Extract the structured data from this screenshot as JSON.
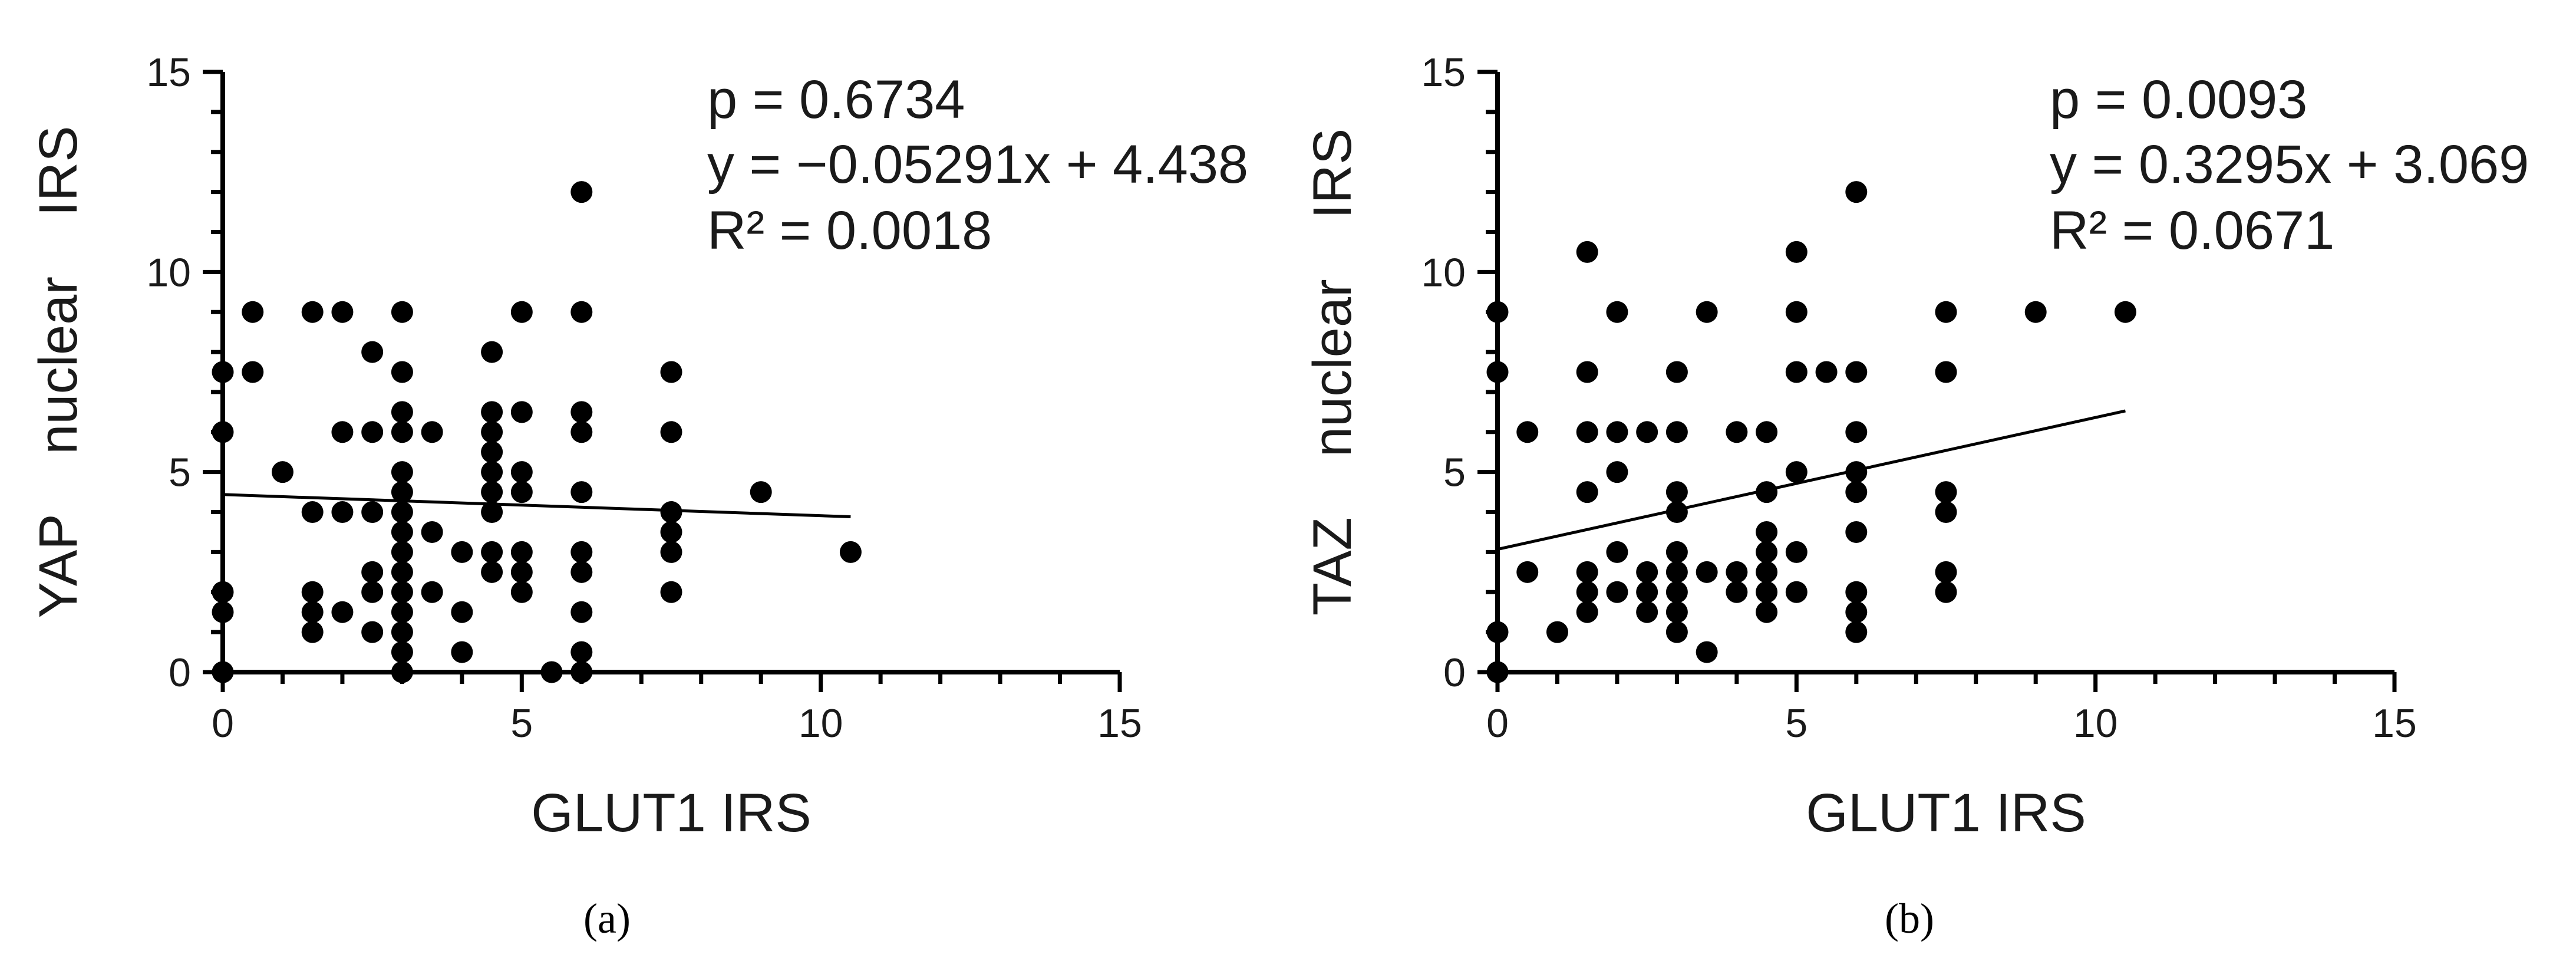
{
  "chart_data": [
    {
      "type": "scatter",
      "panel_label": "(a)",
      "xlabel": "GLUT1 IRS",
      "ylabel": "YAP    nuclear    IRS",
      "xlim": [
        0,
        15
      ],
      "ylim": [
        0,
        15
      ],
      "xticks": [
        0,
        5,
        10,
        15
      ],
      "yticks": [
        0,
        5,
        10,
        15
      ],
      "grid": false,
      "annotations": [
        "p = 0.6734",
        "y = −0.05291x + 4.438",
        "R² = 0.0018"
      ],
      "regression": {
        "slope": -0.05291,
        "intercept": 4.438,
        "x_range": [
          0,
          10.5
        ]
      },
      "points": [
        [
          0,
          7.5
        ],
        [
          0,
          6
        ],
        [
          0,
          2
        ],
        [
          0,
          1.5
        ],
        [
          0,
          0
        ],
        [
          0.5,
          9
        ],
        [
          0.5,
          7.5
        ],
        [
          1,
          5
        ],
        [
          1.5,
          9
        ],
        [
          1.5,
          4
        ],
        [
          1.5,
          2
        ],
        [
          1.5,
          1.5
        ],
        [
          1.5,
          1
        ],
        [
          2,
          9
        ],
        [
          2,
          6
        ],
        [
          2,
          4
        ],
        [
          2,
          1.5
        ],
        [
          2.5,
          8
        ],
        [
          2.5,
          6
        ],
        [
          2.5,
          4
        ],
        [
          2.5,
          2.5
        ],
        [
          2.5,
          2
        ],
        [
          2.5,
          1
        ],
        [
          3,
          9
        ],
        [
          3,
          7.5
        ],
        [
          3,
          6.5
        ],
        [
          3,
          6
        ],
        [
          3,
          5
        ],
        [
          3,
          4.5
        ],
        [
          3,
          4
        ],
        [
          3,
          3.5
        ],
        [
          3,
          3
        ],
        [
          3,
          2.5
        ],
        [
          3,
          2
        ],
        [
          3,
          1.5
        ],
        [
          3,
          1
        ],
        [
          3,
          0.5
        ],
        [
          3,
          0
        ],
        [
          3.5,
          6
        ],
        [
          3.5,
          3.5
        ],
        [
          3.5,
          2
        ],
        [
          4,
          3
        ],
        [
          4,
          1.5
        ],
        [
          4,
          0.5
        ],
        [
          4.5,
          8
        ],
        [
          4.5,
          6.5
        ],
        [
          4.5,
          6
        ],
        [
          4.5,
          5.5
        ],
        [
          4.5,
          5
        ],
        [
          4.5,
          4.5
        ],
        [
          4.5,
          4
        ],
        [
          4.5,
          3
        ],
        [
          4.5,
          2.5
        ],
        [
          5,
          9
        ],
        [
          5,
          6.5
        ],
        [
          5,
          5
        ],
        [
          5,
          4.5
        ],
        [
          5,
          3
        ],
        [
          5,
          2.5
        ],
        [
          5,
          2
        ],
        [
          5.5,
          0
        ],
        [
          6,
          12
        ],
        [
          6,
          9
        ],
        [
          6,
          6.5
        ],
        [
          6,
          6
        ],
        [
          6,
          4.5
        ],
        [
          6,
          3
        ],
        [
          6,
          2.5
        ],
        [
          6,
          1.5
        ],
        [
          6,
          0.5
        ],
        [
          6,
          0
        ],
        [
          7.5,
          7.5
        ],
        [
          7.5,
          6
        ],
        [
          7.5,
          4
        ],
        [
          7.5,
          3.5
        ],
        [
          7.5,
          3
        ],
        [
          7.5,
          2
        ],
        [
          9,
          4.5
        ],
        [
          10.5,
          3
        ]
      ]
    },
    {
      "type": "scatter",
      "panel_label": "(b)",
      "xlabel": "GLUT1 IRS",
      "ylabel": "TAZ    nuclear    IRS",
      "xlim": [
        0,
        15
      ],
      "ylim": [
        0,
        15
      ],
      "xticks": [
        0,
        5,
        10,
        15
      ],
      "yticks": [
        0,
        5,
        10,
        15
      ],
      "grid": false,
      "annotations": [
        "p = 0.0093",
        "y = 0.3295x + 3.069",
        "R² = 0.0671"
      ],
      "regression": {
        "slope": 0.3295,
        "intercept": 3.069,
        "x_range": [
          0,
          10.5
        ]
      },
      "points": [
        [
          0,
          9
        ],
        [
          0,
          7.5
        ],
        [
          0,
          1
        ],
        [
          0,
          0
        ],
        [
          0.5,
          6
        ],
        [
          0.5,
          2.5
        ],
        [
          1,
          1
        ],
        [
          1.5,
          10.5
        ],
        [
          1.5,
          7.5
        ],
        [
          1.5,
          6
        ],
        [
          1.5,
          4.5
        ],
        [
          1.5,
          2.5
        ],
        [
          1.5,
          2
        ],
        [
          1.5,
          1.5
        ],
        [
          2,
          9
        ],
        [
          2,
          6
        ],
        [
          2,
          5
        ],
        [
          2,
          3
        ],
        [
          2,
          2
        ],
        [
          2.5,
          6
        ],
        [
          2.5,
          2.5
        ],
        [
          2.5,
          2
        ],
        [
          2.5,
          1.5
        ],
        [
          3,
          7.5
        ],
        [
          3,
          6
        ],
        [
          3,
          4.5
        ],
        [
          3,
          4
        ],
        [
          3,
          3
        ],
        [
          3,
          2.5
        ],
        [
          3,
          2
        ],
        [
          3,
          1.5
        ],
        [
          3,
          1
        ],
        [
          3.5,
          9
        ],
        [
          3.5,
          2.5
        ],
        [
          3.5,
          0.5
        ],
        [
          4,
          6
        ],
        [
          4,
          2.5
        ],
        [
          4,
          2
        ],
        [
          4.5,
          6
        ],
        [
          4.5,
          4.5
        ],
        [
          4.5,
          3.5
        ],
        [
          4.5,
          3
        ],
        [
          4.5,
          2.5
        ],
        [
          4.5,
          2
        ],
        [
          4.5,
          1.5
        ],
        [
          5,
          10.5
        ],
        [
          5,
          9
        ],
        [
          5,
          7.5
        ],
        [
          5,
          5
        ],
        [
          5,
          3
        ],
        [
          5,
          2
        ],
        [
          5.5,
          7.5
        ],
        [
          6,
          12
        ],
        [
          6,
          7.5
        ],
        [
          6,
          6
        ],
        [
          6,
          5
        ],
        [
          6,
          4.5
        ],
        [
          6,
          3.5
        ],
        [
          6,
          2
        ],
        [
          6,
          1.5
        ],
        [
          6,
          1
        ],
        [
          7.5,
          9
        ],
        [
          7.5,
          7.5
        ],
        [
          7.5,
          4.5
        ],
        [
          7.5,
          4
        ],
        [
          7.5,
          2.5
        ],
        [
          7.5,
          2
        ],
        [
          9,
          9
        ],
        [
          10.5,
          9
        ]
      ]
    }
  ]
}
